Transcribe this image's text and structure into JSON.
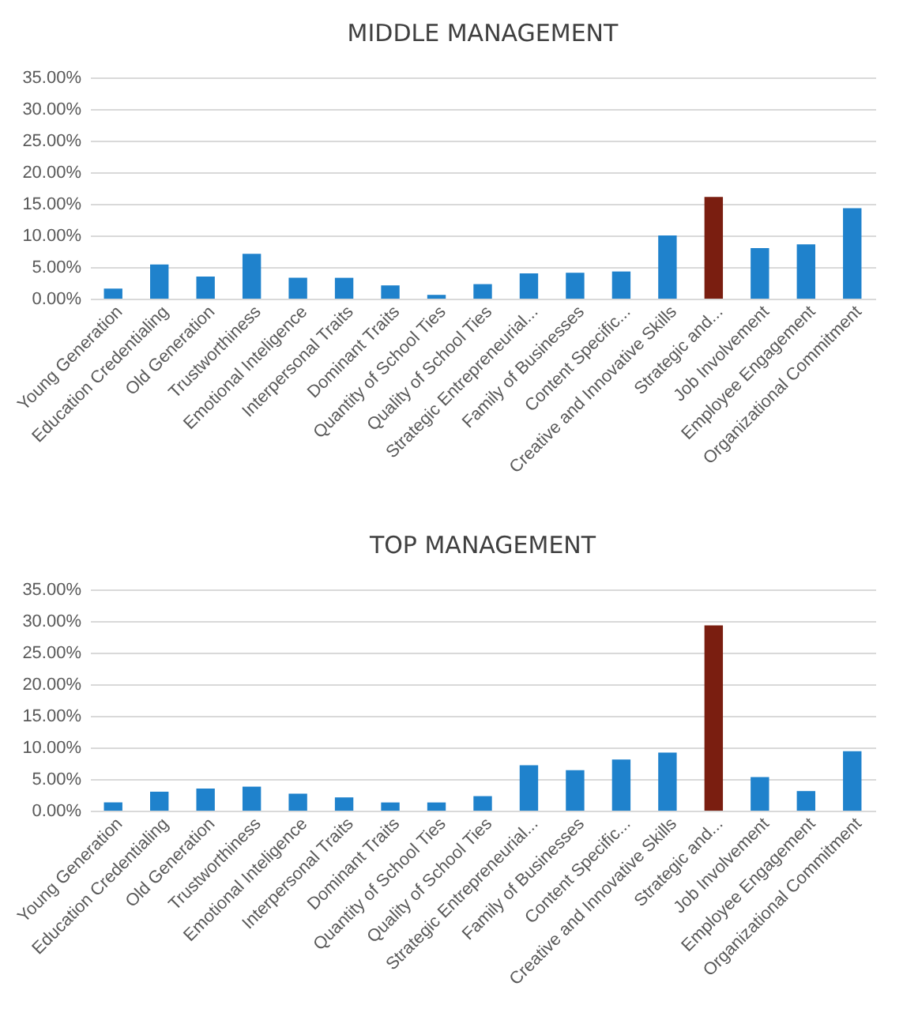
{
  "chart_data": [
    {
      "type": "bar",
      "title": "MIDDLE MANAGEMENT",
      "categories": [
        "Young Generation",
        "Education Credentialing",
        "Old Generation",
        "Trustworthiness",
        "Emotional Inteligence",
        "Interpersonal Traits",
        "Dominant Traits",
        "Quantity of School Ties",
        "Quality of School Ties",
        "Strategic Entrepreneurial...",
        "Family of Businesses",
        "Content Specific...",
        "Creative and Innovative Skills",
        "Strategic and...",
        "Job Involvement",
        "Employee Engagement",
        "Organizational Commitment"
      ],
      "values": [
        1.6,
        5.4,
        3.5,
        7.1,
        3.3,
        3.3,
        2.1,
        0.6,
        2.3,
        4.0,
        4.1,
        4.3,
        10.0,
        16.1,
        8.0,
        8.6,
        14.3
      ],
      "colors": [
        "#1f82cc",
        "#1f82cc",
        "#1f82cc",
        "#1f82cc",
        "#1f82cc",
        "#1f82cc",
        "#1f82cc",
        "#1f82cc",
        "#1f82cc",
        "#1f82cc",
        "#1f82cc",
        "#1f82cc",
        "#1f82cc",
        "#7a1e10",
        "#1f82cc",
        "#1f82cc",
        "#1f82cc"
      ],
      "ylim": [
        0,
        35
      ],
      "yticks": [
        {
          "value": 0,
          "label": "0.00%"
        },
        {
          "value": 5,
          "label": "5.00%"
        },
        {
          "value": 10,
          "label": "10.00%"
        },
        {
          "value": 15,
          "label": "15.00%"
        },
        {
          "value": 20,
          "label": "20.00%"
        },
        {
          "value": 25,
          "label": "25.00%"
        },
        {
          "value": 30,
          "label": "30.00%"
        },
        {
          "value": 35,
          "label": "35.00%"
        }
      ],
      "grid": "y"
    },
    {
      "type": "bar",
      "title": "TOP MANAGEMENT",
      "categories": [
        "Young Generation",
        "Education Credentialing",
        "Old Generation",
        "Trustworthiness",
        "Emotional Inteligence",
        "Interpersonal Traits",
        "Dominant Traits",
        "Quantity of School Ties",
        "Quality of School Ties",
        "Strategic Entrepreneurial...",
        "Family of Businesses",
        "Content Specific...",
        "Creative and Innovative Skills",
        "Strategic and...",
        "Job Involvement",
        "Employee Engagement",
        "Organizational Commitment"
      ],
      "values": [
        1.3,
        3.0,
        3.5,
        3.8,
        2.7,
        2.1,
        1.3,
        1.3,
        2.3,
        7.2,
        6.4,
        8.1,
        9.2,
        29.3,
        5.3,
        3.1,
        9.4
      ],
      "colors": [
        "#1f82cc",
        "#1f82cc",
        "#1f82cc",
        "#1f82cc",
        "#1f82cc",
        "#1f82cc",
        "#1f82cc",
        "#1f82cc",
        "#1f82cc",
        "#1f82cc",
        "#1f82cc",
        "#1f82cc",
        "#1f82cc",
        "#7a1e10",
        "#1f82cc",
        "#1f82cc",
        "#1f82cc"
      ],
      "ylim": [
        0,
        35
      ],
      "yticks": [
        {
          "value": 0,
          "label": "0.00%"
        },
        {
          "value": 5,
          "label": "5.00%"
        },
        {
          "value": 10,
          "label": "10.00%"
        },
        {
          "value": 15,
          "label": "15.00%"
        },
        {
          "value": 20,
          "label": "20.00%"
        },
        {
          "value": 25,
          "label": "25.00%"
        },
        {
          "value": 30,
          "label": "30.00%"
        },
        {
          "value": 35,
          "label": "35.00%"
        }
      ],
      "grid": "y"
    }
  ]
}
